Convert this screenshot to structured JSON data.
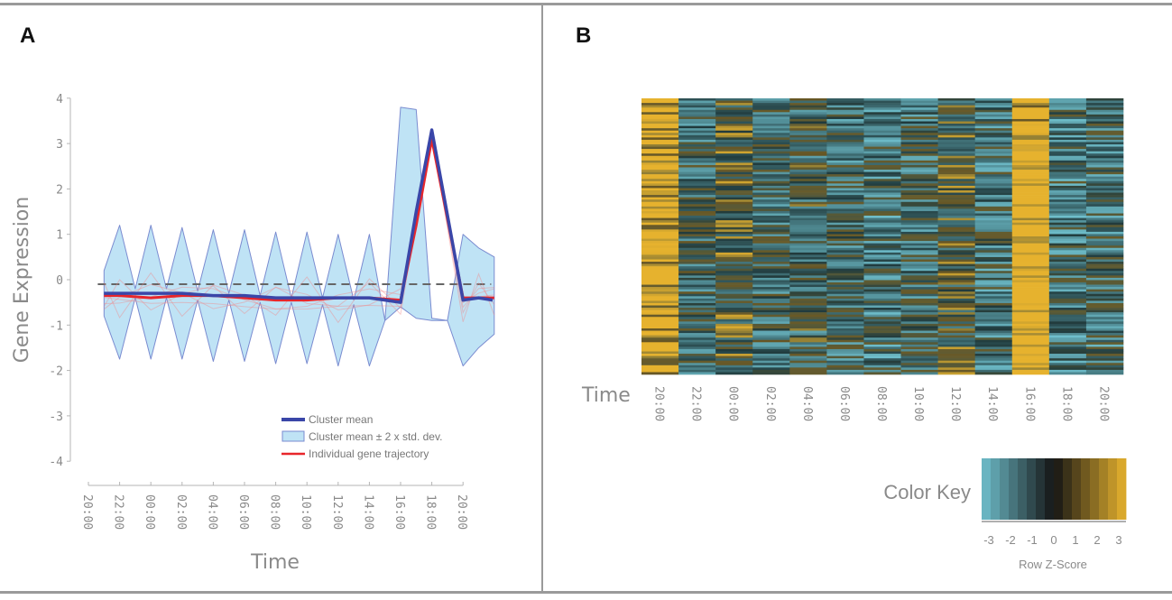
{
  "panels": {
    "a_label": "A",
    "b_label": "B"
  },
  "chart_data": [
    {
      "type": "line",
      "panel": "A",
      "title": "",
      "xlabel": "Time",
      "ylabel": "Gene Expression",
      "categories": [
        "20:00",
        "22:00",
        "00:00",
        "02:00",
        "04:00",
        "06:00",
        "08:00",
        "10:00",
        "12:00",
        "14:00",
        "16:00",
        "18:00",
        "20:00"
      ],
      "ylim": [
        -4,
        4
      ],
      "yticks": [
        "4",
        "3",
        "2",
        "1",
        "0",
        "-1",
        "-2",
        "-3",
        "-4"
      ],
      "series": [
        {
          "name": "Cluster mean",
          "color": "#3a46a8",
          "x": [
            0.5,
            1,
            2,
            3,
            4,
            5,
            6,
            7,
            8,
            9,
            10,
            10.5,
            11,
            12,
            12.5,
            12.95
          ],
          "values": [
            -0.3,
            -0.3,
            -0.3,
            -0.3,
            -0.35,
            -0.35,
            -0.4,
            -0.4,
            -0.4,
            -0.4,
            -0.5,
            1.5,
            3.3,
            -0.45,
            -0.4,
            -0.45
          ]
        },
        {
          "name": "Cluster mean ± 2 x std. dev.",
          "color": "#bfe3f5",
          "x": [
            0.5,
            1,
            1.5,
            2,
            2.5,
            3,
            3.5,
            4,
            4.5,
            5,
            5.5,
            6,
            6.5,
            7,
            7.5,
            8,
            8.5,
            9,
            9.5,
            10,
            10.5,
            11,
            11.5,
            12,
            12.5,
            13
          ],
          "upper": [
            0.2,
            1.2,
            -0.2,
            1.2,
            -0.2,
            1.15,
            -0.25,
            1.1,
            -0.3,
            1.1,
            -0.35,
            1.05,
            -0.4,
            1.05,
            -0.4,
            1.0,
            -0.45,
            1.0,
            -0.9,
            3.8,
            3.75,
            -0.85,
            -0.9,
            1.0,
            0.7,
            0.5
          ],
          "lower": [
            -0.8,
            -1.75,
            -0.4,
            -1.75,
            -0.4,
            -1.75,
            -0.45,
            -1.8,
            -0.45,
            -1.8,
            -0.5,
            -1.85,
            -0.5,
            -1.85,
            -0.55,
            -1.9,
            -0.55,
            -1.9,
            -0.9,
            -0.6,
            -0.85,
            -0.9,
            -0.9,
            -1.9,
            -1.5,
            -1.2
          ]
        },
        {
          "name": "Individual gene trajectory",
          "color": "#e8262b",
          "x": [
            0.5,
            1,
            2,
            3,
            4,
            5,
            6,
            7,
            8,
            9,
            10,
            10.5,
            11,
            12,
            12.5,
            13
          ],
          "values": [
            -0.35,
            -0.35,
            -0.4,
            -0.35,
            -0.35,
            -0.4,
            -0.45,
            -0.45,
            -0.4,
            -0.4,
            -0.45,
            1.2,
            3.1,
            -0.4,
            -0.4,
            -0.4
          ]
        }
      ],
      "reference_line": {
        "y": -0.1,
        "style": "dashed",
        "color": "#666666"
      },
      "legend": [
        "Cluster mean",
        "Cluster mean ± 2 x std. dev.",
        "Individual gene trajectory"
      ],
      "legend_position": "bottom-right"
    },
    {
      "type": "heatmap",
      "panel": "B",
      "xlabel": "Time",
      "categories": [
        "20:00",
        "22:00",
        "00:00",
        "02:00",
        "04:00",
        "06:00",
        "08:00",
        "10:00",
        "12:00",
        "14:00",
        "16:00",
        "18:00",
        "20:00"
      ],
      "column_mean_zscore": [
        1.7,
        -0.3,
        0.3,
        -0.3,
        -0.2,
        -0.4,
        -0.6,
        -0.4,
        0.2,
        -0.5,
        2.0,
        -0.6,
        -0.5
      ],
      "row_count": 120,
      "color_key": {
        "title": "Color Key",
        "subtitle": "Row Z-Score",
        "ticks": [
          "-3",
          "-2",
          "-1",
          "0",
          "1",
          "2",
          "3"
        ],
        "range": [
          -3,
          3
        ],
        "low_color": "#6fbfcc",
        "mid_color": "#141414",
        "high_color": "#e6b22e"
      }
    }
  ]
}
